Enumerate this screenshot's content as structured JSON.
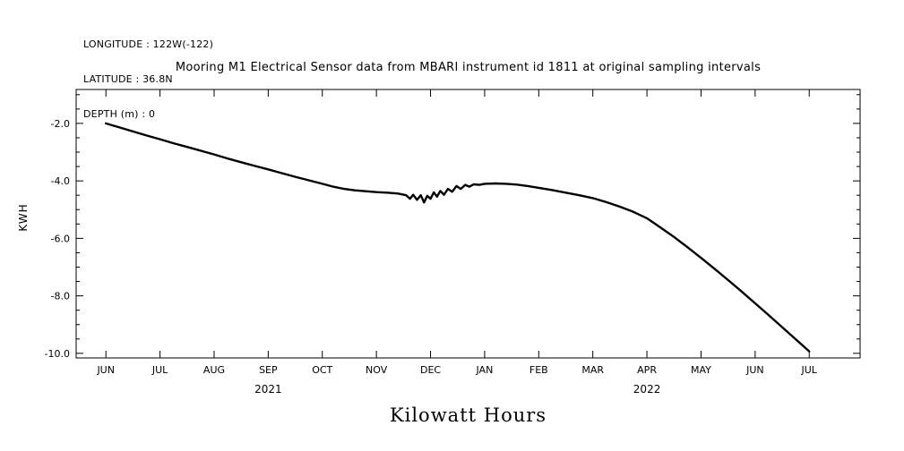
{
  "meta": {
    "longitude": "LONGITUDE : 122W(-122)",
    "latitude": "LATITUDE : 36.8N",
    "depth": "DEPTH (m) : 0"
  },
  "title": "Mooring M1 Electrical Sensor data from MBARI instrument id 1811 at original sampling intervals",
  "ylabel": "KWH",
  "xlabel": "Kilowatt Hours",
  "colors": {
    "line": "#000000",
    "axis": "#000000",
    "background": "#ffffff"
  },
  "chart_data": {
    "type": "line",
    "title": "Mooring M1 Electrical Sensor data from MBARI instrument id 1811 at original sampling intervals",
    "ylabel": "KWH",
    "xlabel": "Kilowatt Hours",
    "x_unit": "months since 2021-06 (0 = JUN 2021)",
    "grid": false,
    "legend": "none",
    "xlim": [
      -0.55,
      13.94
    ],
    "ylim": [
      -10.16,
      -0.82
    ],
    "x_ticks": [
      {
        "pos": 0,
        "label": "JUN"
      },
      {
        "pos": 1,
        "label": "JUL"
      },
      {
        "pos": 2,
        "label": "AUG"
      },
      {
        "pos": 3,
        "label": "SEP"
      },
      {
        "pos": 4,
        "label": "OCT"
      },
      {
        "pos": 5,
        "label": "NOV"
      },
      {
        "pos": 6,
        "label": "DEC"
      },
      {
        "pos": 7,
        "label": "JAN"
      },
      {
        "pos": 8,
        "label": "FEB"
      },
      {
        "pos": 9,
        "label": "MAR"
      },
      {
        "pos": 10,
        "label": "APR"
      },
      {
        "pos": 11,
        "label": "MAY"
      },
      {
        "pos": 12,
        "label": "JUN"
      },
      {
        "pos": 13,
        "label": "JUL"
      }
    ],
    "year_labels": [
      {
        "pos": 3,
        "label": "2021"
      },
      {
        "pos": 10,
        "label": "2022"
      }
    ],
    "y_ticks": [
      {
        "value": -2.0,
        "label": "-2.0"
      },
      {
        "value": -4.0,
        "label": "-4.0"
      },
      {
        "value": -6.0,
        "label": "-6.0"
      },
      {
        "value": -8.0,
        "label": "-8.0"
      },
      {
        "value": -10.0,
        "label": "-10.0"
      }
    ],
    "y_minor_step": 0.5,
    "points": [
      [
        0.0,
        -2.0
      ],
      [
        0.25,
        -2.14
      ],
      [
        0.5,
        -2.28
      ],
      [
        0.75,
        -2.42
      ],
      [
        1.0,
        -2.55
      ],
      [
        1.25,
        -2.69
      ],
      [
        1.5,
        -2.82
      ],
      [
        1.75,
        -2.95
      ],
      [
        2.0,
        -3.08
      ],
      [
        2.25,
        -3.22
      ],
      [
        2.5,
        -3.35
      ],
      [
        2.75,
        -3.48
      ],
      [
        3.0,
        -3.6
      ],
      [
        3.25,
        -3.73
      ],
      [
        3.5,
        -3.86
      ],
      [
        3.75,
        -3.98
      ],
      [
        4.0,
        -4.1
      ],
      [
        4.2,
        -4.2
      ],
      [
        4.4,
        -4.28
      ],
      [
        4.6,
        -4.33
      ],
      [
        4.8,
        -4.36
      ],
      [
        5.0,
        -4.39
      ],
      [
        5.2,
        -4.41
      ],
      [
        5.4,
        -4.44
      ],
      [
        5.55,
        -4.5
      ],
      [
        5.62,
        -4.62
      ],
      [
        5.68,
        -4.48
      ],
      [
        5.75,
        -4.66
      ],
      [
        5.82,
        -4.5
      ],
      [
        5.88,
        -4.75
      ],
      [
        5.94,
        -4.52
      ],
      [
        6.0,
        -4.62
      ],
      [
        6.06,
        -4.4
      ],
      [
        6.12,
        -4.55
      ],
      [
        6.18,
        -4.35
      ],
      [
        6.25,
        -4.48
      ],
      [
        6.32,
        -4.28
      ],
      [
        6.4,
        -4.38
      ],
      [
        6.48,
        -4.18
      ],
      [
        6.56,
        -4.28
      ],
      [
        6.64,
        -4.14
      ],
      [
        6.72,
        -4.2
      ],
      [
        6.8,
        -4.12
      ],
      [
        6.9,
        -4.14
      ],
      [
        7.0,
        -4.1
      ],
      [
        7.2,
        -4.09
      ],
      [
        7.4,
        -4.1
      ],
      [
        7.6,
        -4.13
      ],
      [
        7.8,
        -4.18
      ],
      [
        8.0,
        -4.24
      ],
      [
        8.25,
        -4.32
      ],
      [
        8.5,
        -4.41
      ],
      [
        8.75,
        -4.5
      ],
      [
        9.0,
        -4.6
      ],
      [
        9.25,
        -4.74
      ],
      [
        9.5,
        -4.9
      ],
      [
        9.75,
        -5.08
      ],
      [
        10.0,
        -5.3
      ],
      [
        10.25,
        -5.62
      ],
      [
        10.5,
        -5.95
      ],
      [
        10.75,
        -6.31
      ],
      [
        11.0,
        -6.68
      ],
      [
        11.25,
        -7.06
      ],
      [
        11.5,
        -7.45
      ],
      [
        11.75,
        -7.85
      ],
      [
        12.0,
        -8.26
      ],
      [
        12.25,
        -8.67
      ],
      [
        12.5,
        -9.09
      ],
      [
        12.75,
        -9.51
      ],
      [
        13.0,
        -9.93
      ]
    ]
  }
}
